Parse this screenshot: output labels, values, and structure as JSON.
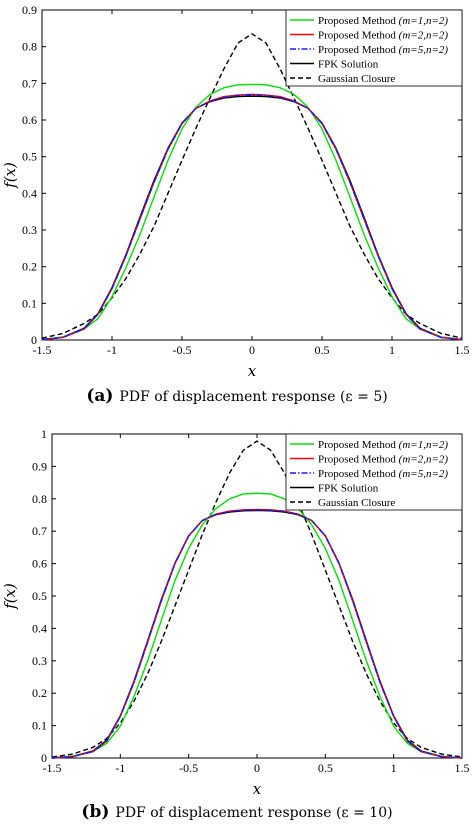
{
  "legend_entries": [
    {
      "label": "Proposed Method ",
      "italic": "(m=1,n=2)",
      "color": "#00e000",
      "dash": "none"
    },
    {
      "label": "Proposed Method ",
      "italic": "(m=2,n=2)",
      "color": "#ff0000",
      "dash": "none"
    },
    {
      "label": "Proposed Method ",
      "italic": "(m=5,n=2)",
      "color": "#1a1aff",
      "dash": "6 2 1.5 2"
    },
    {
      "label": "FPK Solution",
      "italic": "",
      "color": "#000000",
      "dash": "none"
    },
    {
      "label": "Gaussian Closure",
      "italic": "",
      "color": "#000000",
      "dash": "5 3"
    }
  ],
  "chart_data": [
    {
      "type": "line",
      "xlabel": "x",
      "ylabel": "f(x)",
      "xlim": [
        -1.5,
        1.5
      ],
      "ylim": [
        0,
        0.9
      ],
      "xticks": [
        "-1.5",
        "-1",
        "-0.5",
        "0",
        "0.5",
        "1",
        "1.5"
      ],
      "yticks": [
        "0",
        "0.1",
        "0.2",
        "0.3",
        "0.4",
        "0.5",
        "0.6",
        "0.7",
        "0.8",
        "0.9"
      ],
      "caption_letter": "(a)",
      "caption_text": "PDF of displacement response (ε = 5)",
      "legend_placement": "top-right",
      "x": [
        -1.5,
        -1.35,
        -1.2,
        -1.1,
        -1.0,
        -0.9,
        -0.8,
        -0.7,
        -0.6,
        -0.5,
        -0.4,
        -0.3,
        -0.2,
        -0.1,
        0,
        0.1,
        0.2,
        0.3,
        0.4,
        0.5,
        0.6,
        0.7,
        0.8,
        0.9,
        1.0,
        1.1,
        1.2,
        1.35,
        1.5
      ],
      "series": [
        {
          "name": "Proposed Method (m=1,n=2)",
          "values": [
            0.001,
            0.008,
            0.03,
            0.058,
            0.118,
            0.198,
            0.288,
            0.39,
            0.49,
            0.576,
            0.635,
            0.67,
            0.688,
            0.696,
            0.697,
            0.696,
            0.688,
            0.67,
            0.635,
            0.576,
            0.49,
            0.39,
            0.288,
            0.198,
            0.118,
            0.058,
            0.03,
            0.008,
            0.001
          ]
        },
        {
          "name": "Proposed Method (m=2,n=2)",
          "values": [
            0.001,
            0.007,
            0.03,
            0.07,
            0.14,
            0.23,
            0.33,
            0.43,
            0.52,
            0.59,
            0.632,
            0.652,
            0.664,
            0.668,
            0.67,
            0.668,
            0.664,
            0.652,
            0.632,
            0.59,
            0.52,
            0.43,
            0.33,
            0.23,
            0.14,
            0.07,
            0.03,
            0.007,
            0.001
          ]
        },
        {
          "name": "Proposed Method (m=5,n=2)",
          "values": [
            0.001,
            0.007,
            0.03,
            0.07,
            0.14,
            0.23,
            0.33,
            0.43,
            0.52,
            0.59,
            0.632,
            0.651,
            0.662,
            0.667,
            0.669,
            0.667,
            0.662,
            0.651,
            0.632,
            0.59,
            0.52,
            0.43,
            0.33,
            0.23,
            0.14,
            0.07,
            0.03,
            0.007,
            0.001
          ]
        },
        {
          "name": "FPK Solution",
          "values": [
            0.001,
            0.008,
            0.032,
            0.072,
            0.143,
            0.233,
            0.335,
            0.435,
            0.523,
            0.592,
            0.632,
            0.65,
            0.66,
            0.664,
            0.665,
            0.664,
            0.66,
            0.65,
            0.632,
            0.592,
            0.523,
            0.435,
            0.335,
            0.233,
            0.143,
            0.072,
            0.032,
            0.008,
            0.001
          ]
        },
        {
          "name": "Gaussian Closure",
          "values": [
            0.005,
            0.018,
            0.045,
            0.07,
            0.115,
            0.168,
            0.235,
            0.31,
            0.4,
            0.49,
            0.578,
            0.66,
            0.74,
            0.81,
            0.835,
            0.81,
            0.74,
            0.66,
            0.578,
            0.49,
            0.4,
            0.31,
            0.235,
            0.168,
            0.115,
            0.07,
            0.045,
            0.018,
            0.005
          ]
        }
      ]
    },
    {
      "type": "line",
      "xlabel": "x",
      "ylabel": "f(x)",
      "xlim": [
        -1.5,
        1.5
      ],
      "ylim": [
        0,
        1
      ],
      "xticks": [
        "-1.5",
        "-1",
        "-0.5",
        "0",
        "0.5",
        "1",
        "1.5"
      ],
      "yticks": [
        "0",
        "0.1",
        "0.2",
        "0.3",
        "0.4",
        "0.5",
        "0.6",
        "0.7",
        "0.8",
        "0.9",
        "1"
      ],
      "caption_letter": "(b)",
      "caption_text": "PDF of displacement response (ε = 10)",
      "legend_placement": "top-right",
      "x": [
        -1.5,
        -1.35,
        -1.2,
        -1.1,
        -1.0,
        -0.9,
        -0.8,
        -0.7,
        -0.6,
        -0.5,
        -0.4,
        -0.3,
        -0.2,
        -0.1,
        0,
        0.1,
        0.2,
        0.3,
        0.4,
        0.5,
        0.6,
        0.7,
        0.8,
        0.9,
        1.0,
        1.1,
        1.2,
        1.35,
        1.5
      ],
      "series": [
        {
          "name": "Proposed Method (m=1,n=2)",
          "values": [
            0.0,
            0.005,
            0.02,
            0.045,
            0.098,
            0.19,
            0.3,
            0.425,
            0.548,
            0.647,
            0.72,
            0.77,
            0.8,
            0.815,
            0.817,
            0.815,
            0.8,
            0.77,
            0.72,
            0.647,
            0.548,
            0.425,
            0.3,
            0.19,
            0.098,
            0.045,
            0.02,
            0.005,
            0.0
          ]
        },
        {
          "name": "Proposed Method (m=2,n=2)",
          "values": [
            0.0,
            0.004,
            0.02,
            0.052,
            0.128,
            0.233,
            0.358,
            0.485,
            0.6,
            0.685,
            0.733,
            0.753,
            0.762,
            0.766,
            0.767,
            0.766,
            0.762,
            0.753,
            0.733,
            0.685,
            0.6,
            0.485,
            0.358,
            0.233,
            0.128,
            0.052,
            0.02,
            0.004,
            0.0
          ]
        },
        {
          "name": "Proposed Method (m=5,n=2)",
          "values": [
            0.0,
            0.004,
            0.02,
            0.052,
            0.128,
            0.233,
            0.358,
            0.485,
            0.6,
            0.685,
            0.733,
            0.752,
            0.761,
            0.765,
            0.766,
            0.765,
            0.761,
            0.752,
            0.733,
            0.685,
            0.6,
            0.485,
            0.358,
            0.233,
            0.128,
            0.052,
            0.02,
            0.004,
            0.0
          ]
        },
        {
          "name": "FPK Solution",
          "values": [
            0.0,
            0.005,
            0.022,
            0.055,
            0.13,
            0.237,
            0.362,
            0.489,
            0.602,
            0.686,
            0.733,
            0.751,
            0.759,
            0.763,
            0.764,
            0.763,
            0.759,
            0.751,
            0.733,
            0.686,
            0.602,
            0.489,
            0.362,
            0.237,
            0.13,
            0.055,
            0.022,
            0.005,
            0.0
          ]
        },
        {
          "name": "Gaussian Closure",
          "values": [
            0.003,
            0.012,
            0.033,
            0.06,
            0.108,
            0.175,
            0.26,
            0.36,
            0.47,
            0.58,
            0.69,
            0.79,
            0.88,
            0.95,
            0.978,
            0.95,
            0.88,
            0.79,
            0.69,
            0.58,
            0.47,
            0.36,
            0.26,
            0.175,
            0.108,
            0.06,
            0.033,
            0.012,
            0.003
          ]
        }
      ]
    }
  ]
}
